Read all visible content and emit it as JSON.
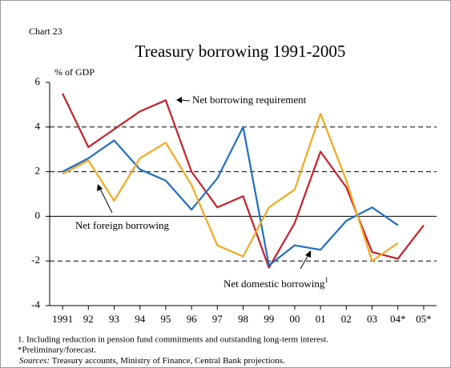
{
  "chart_data": {
    "type": "line",
    "label": "Chart 23",
    "title": "Treasury borrowing 1991-2005",
    "ylabel": "% of GDP",
    "categories": [
      "1991",
      "92",
      "93",
      "94",
      "95",
      "96",
      "97",
      "98",
      "99",
      "00",
      "01",
      "02",
      "03",
      "04*",
      "05*"
    ],
    "series": [
      {
        "name": "Net borrowing requirement",
        "color": "#c8202a",
        "values": [
          5.5,
          3.1,
          3.9,
          4.7,
          5.2,
          2.0,
          0.4,
          0.9,
          -2.3,
          -0.3,
          2.9,
          1.3,
          -1.6,
          -1.9,
          -0.4
        ]
      },
      {
        "name": "Net domestic borrowing",
        "name_sup": "1",
        "color": "#1f6fc5",
        "values": [
          2.0,
          2.6,
          3.4,
          2.1,
          1.6,
          0.3,
          1.7,
          4.0,
          -2.2,
          -1.3,
          -1.5,
          -0.2,
          0.4,
          -0.4,
          null
        ]
      },
      {
        "name": "Net foreign borrowing",
        "color": "#f5a81c",
        "values": [
          1.9,
          2.5,
          0.7,
          2.6,
          3.3,
          1.4,
          -1.3,
          -1.8,
          0.4,
          1.2,
          4.6,
          1.6,
          -2.0,
          -1.2,
          null
        ]
      }
    ],
    "ylim": [
      -4,
      6
    ],
    "yticks": [
      -4,
      -2,
      0,
      2,
      4,
      6
    ],
    "grid": true,
    "footnotes": [
      "1. Including reduction in pension fund commitments and outstanding long-term interest.",
      "*Preliminary/forecast."
    ],
    "sources_label": "Sources:",
    "sources": "Treasury accounts, Ministry of Finance, Central Bank projections."
  }
}
